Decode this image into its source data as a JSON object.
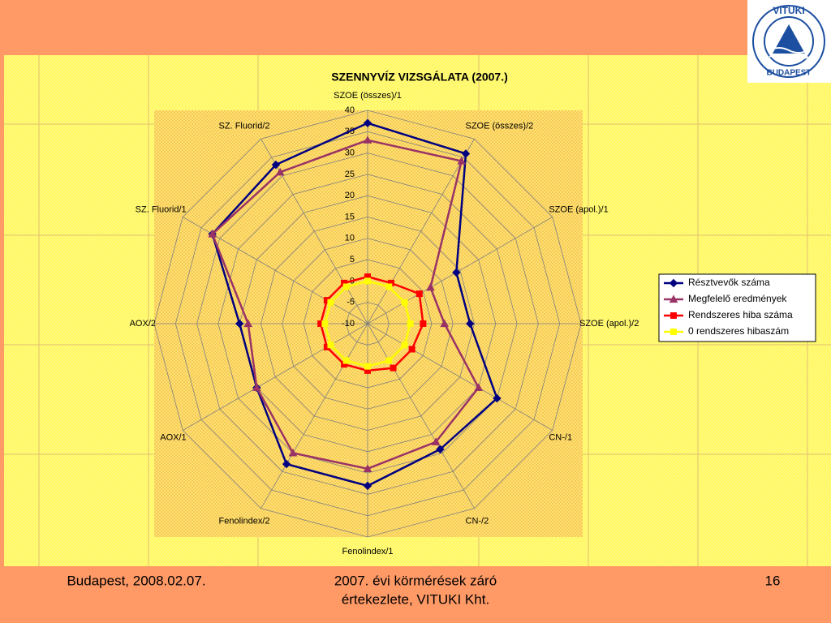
{
  "chart_data": {
    "type": "radar",
    "title": "SZENNYVÍZ VIZSGÁLATA (2007.)",
    "categories": [
      "SZOE (összes)/1",
      "SZOE (összes)/2",
      "SZOE (apol.)/1",
      "SZOE (apol.)/2",
      "CN-/1",
      "CN-/2",
      "Fenolindex/1",
      "Fenolindex/2",
      "AOX/1",
      "AOX/2",
      "SZ. Fluorid/1",
      "SZ. Fluorid/2"
    ],
    "series": [
      {
        "name": "Résztvevők száma",
        "color": "#000080",
        "marker": "diamond",
        "values": [
          37,
          36,
          14,
          14,
          25,
          24,
          28,
          28,
          20,
          20,
          32,
          33
        ]
      },
      {
        "name": "Megfelelő eredmények",
        "color": "#993366",
        "marker": "triangle",
        "values": [
          33,
          34,
          7,
          8,
          20,
          22,
          24,
          25,
          20,
          18,
          32,
          31
        ]
      },
      {
        "name": "Rendszeres hiba száma",
        "color": "#ff0000",
        "marker": "square",
        "values": [
          1,
          1,
          4,
          3,
          2,
          2,
          1,
          1,
          1,
          1,
          1,
          1
        ]
      },
      {
        "name": "0 rendszeres hibaszám",
        "color": "#ffff00",
        "marker": "square",
        "values": [
          0,
          0,
          0,
          0,
          0,
          0,
          0,
          0,
          0,
          0,
          0,
          0
        ]
      }
    ],
    "ylim": [
      -10,
      40
    ],
    "yticks": [
      -10,
      -5,
      0,
      5,
      10,
      15,
      20,
      25,
      30,
      35,
      40
    ],
    "grid": true,
    "legend": "right"
  },
  "logo": {
    "top": "VITUKI",
    "bottom": "BUDAPEST"
  },
  "footer": {
    "date": "Budapest, 2008.02.07.",
    "event": [
      "2007. évi körmérések záró",
      "értekezlete, VITUKI Kht."
    ],
    "page": "16"
  }
}
